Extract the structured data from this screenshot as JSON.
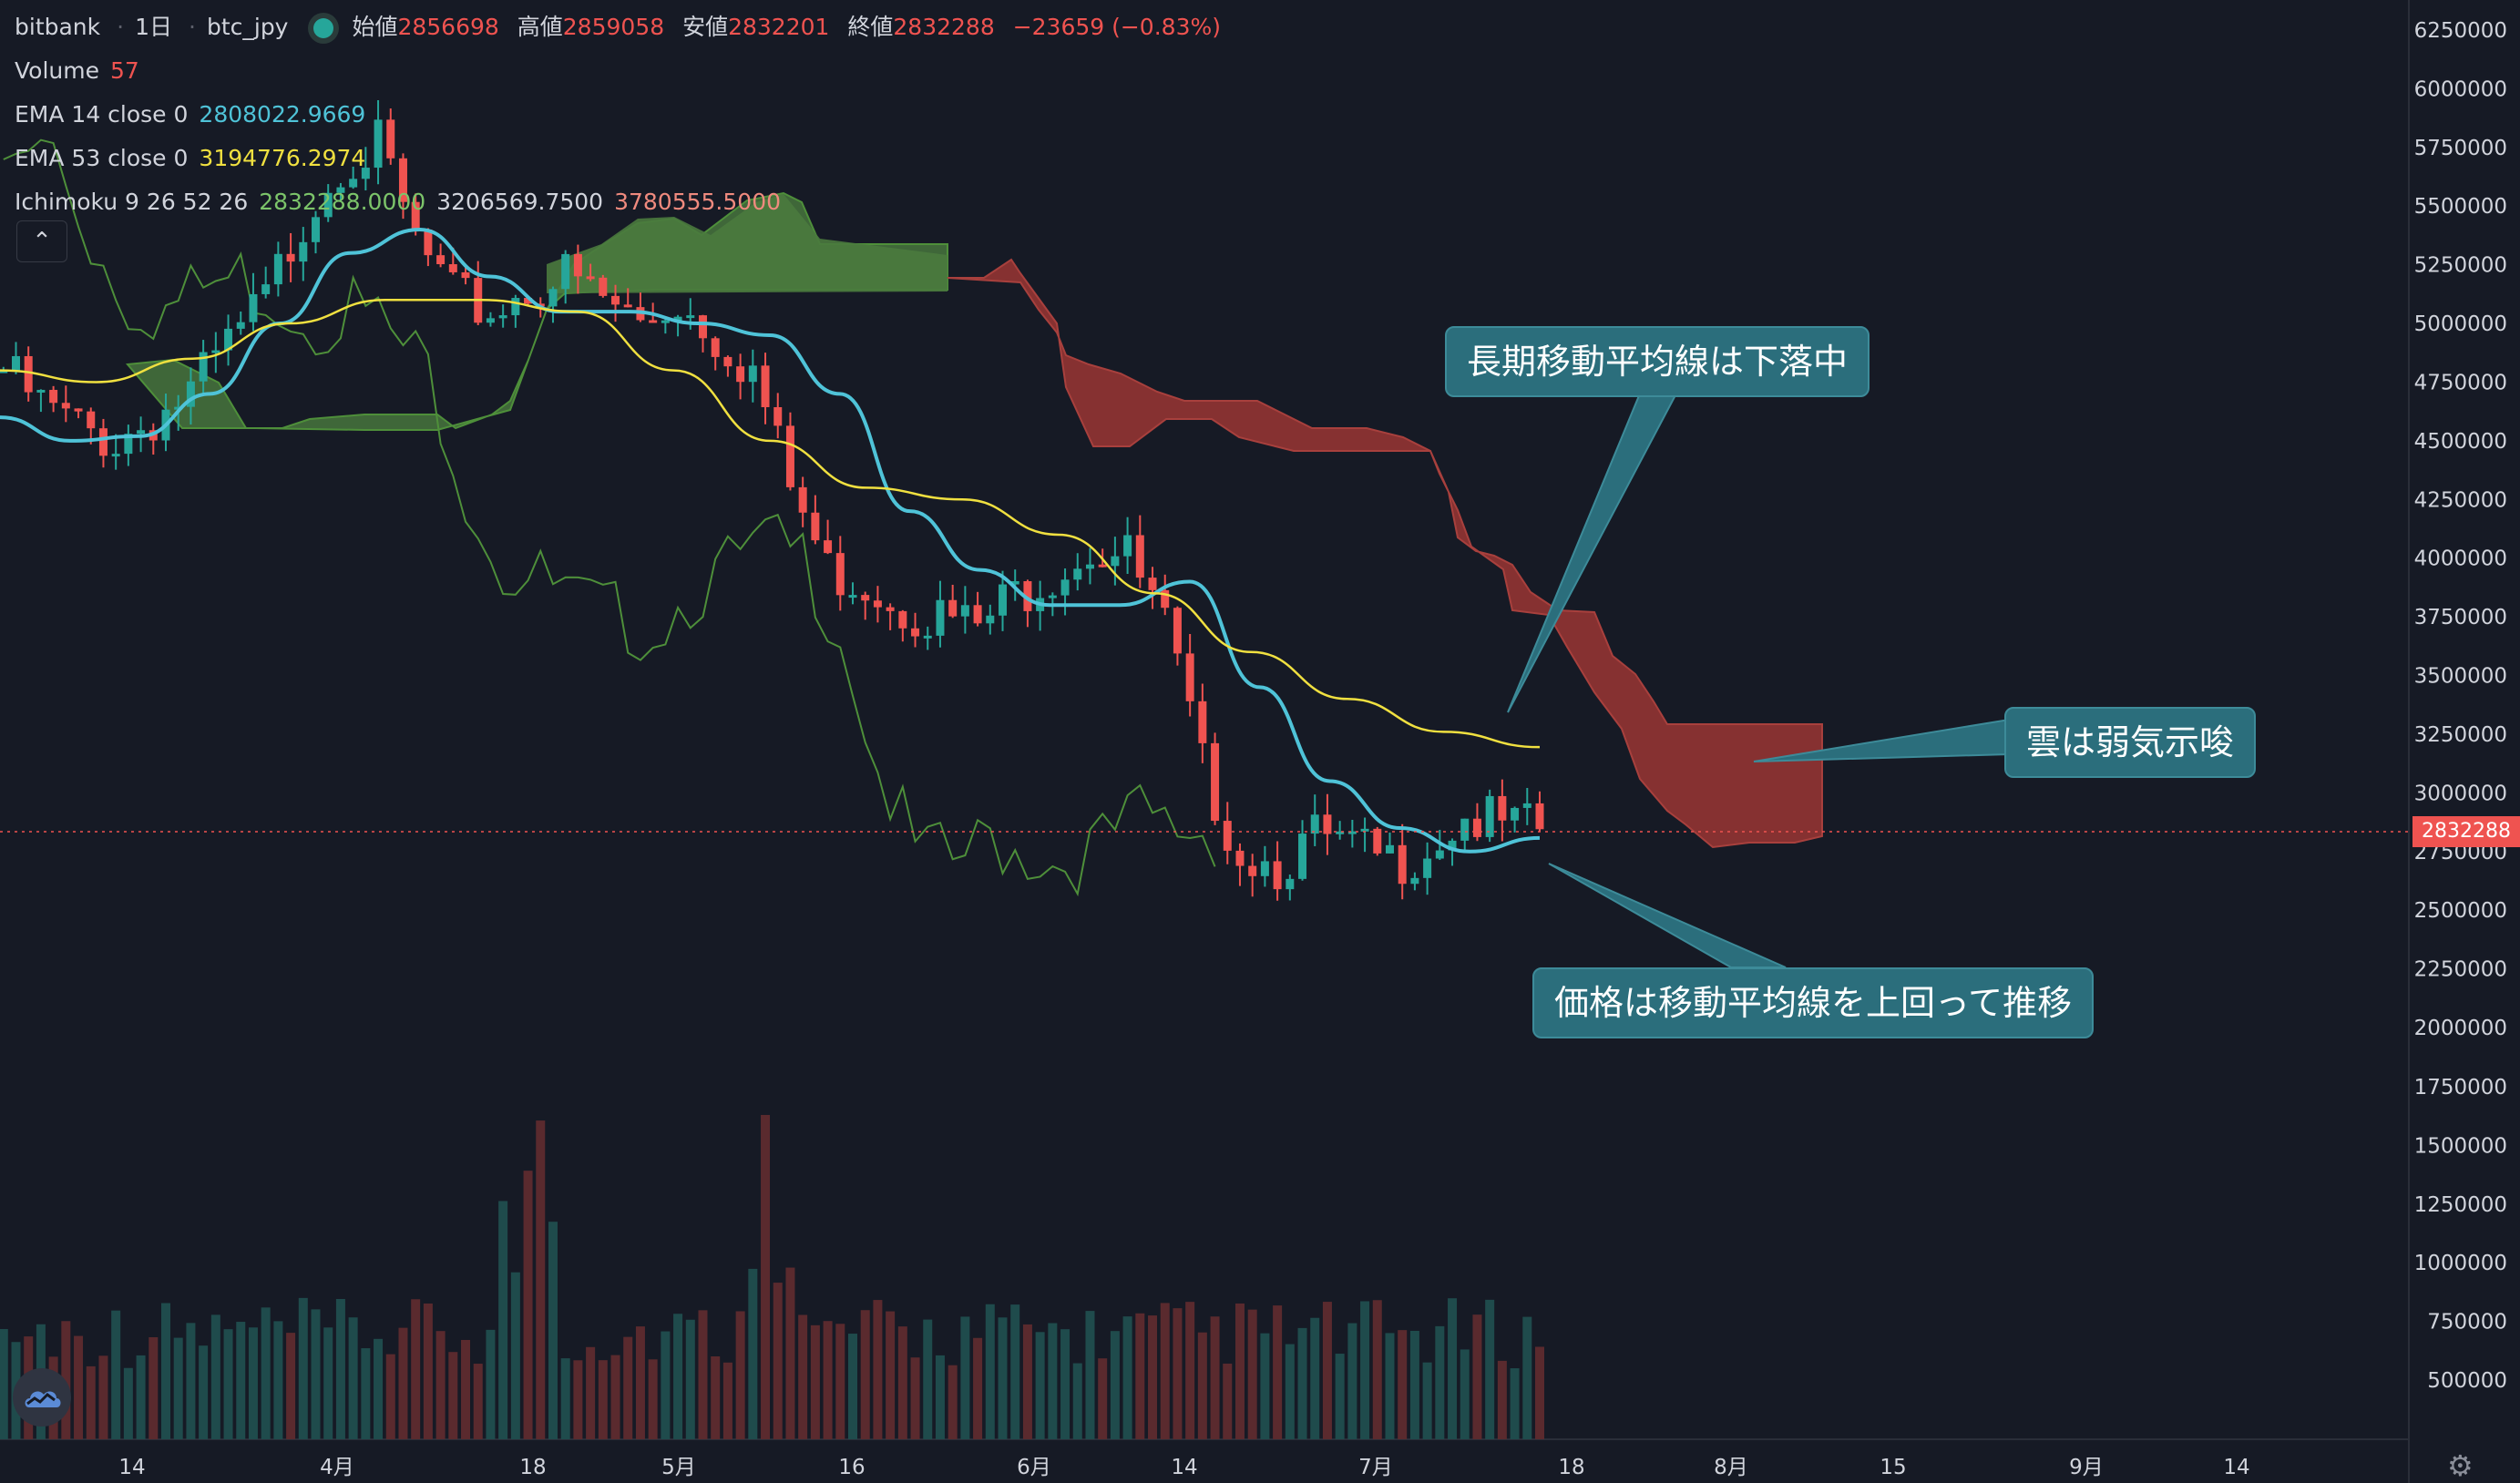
{
  "header": {
    "exchange": "bitbank",
    "interval": "1日",
    "symbol": "btc_jpy",
    "open_label": "始値",
    "open_value": "2856698",
    "high_label": "高値",
    "high_value": "2859058",
    "low_label": "安値",
    "low_value": "2832201",
    "close_label": "終値",
    "close_value": "2832288",
    "change": "−23659 (−0.83%)"
  },
  "indicators": {
    "volume_label": "Volume",
    "volume_value": "57",
    "ema14_label": "EMA 14 close 0",
    "ema14_value": "2808022.9669",
    "ema53_label": "EMA 53 close 0",
    "ema53_value": "3194776.2974",
    "ichimoku_label": "Ichimoku 9 26 52 26",
    "ichimoku_v1": "2832288.0000",
    "ichimoku_v2": "3206569.7500",
    "ichimoku_v3": "3780555.5000"
  },
  "collapse_icon": "chevron-up-icon",
  "price_tag": "2832288",
  "callouts": {
    "long_ma": "長期移動平均線は下落中",
    "cloud": "雲は弱気示唆",
    "price": "価格は移動平均線を上回って推移"
  },
  "colors": {
    "background": "#161a25",
    "up": "#26a69a",
    "down": "#ef5350",
    "ema14": "#4fc3d8",
    "ema53": "#f0e040",
    "lagging_span": "#4e8f3a",
    "cloud_bull": "#4a7a3e",
    "cloud_bear": "#8c3331",
    "callout": "#2b6e7c"
  },
  "chart_data": {
    "type": "candlestick",
    "title": "",
    "interval": "1D",
    "x_tick_labels": [
      "14",
      "4月",
      "18",
      "5月",
      "16",
      "6月",
      "14",
      "7月",
      "18",
      "8月",
      "15",
      "9月",
      "14"
    ],
    "price_axis_ticks": [
      6250000,
      6000000,
      5750000,
      5500000,
      5250000,
      5000000,
      4750000,
      4500000,
      4250000,
      4000000,
      3750000,
      3500000,
      3250000,
      3000000,
      2750000,
      2500000,
      2250000,
      2000000
    ],
    "volume_axis_ticks": [
      1750000,
      1500000,
      1250000,
      1000000,
      750000,
      500000
    ],
    "price_range": [
      1850000,
      6350000
    ],
    "last_price": 2832288,
    "closes_every_3_days": [
      4800000,
      4650000,
      4550000,
      4500000,
      4600000,
      4700000,
      4900000,
      5100000,
      5450000,
      5700000,
      5750000,
      5350000,
      5100000,
      5050000,
      5150000,
      5200000,
      5100000,
      5000000,
      5100000,
      4950000,
      4800000,
      4300000,
      3950000,
      3900000,
      3800000,
      3750000,
      3700000,
      3850000,
      3950000,
      4050000,
      4000000,
      3700000,
      3100000,
      2750000,
      2700000,
      2800000,
      2750000,
      2700000,
      2780000,
      2900000,
      2850000,
      2832288
    ],
    "ema14": [
      4600000,
      4500000,
      4520000,
      4700000,
      5000000,
      5300000,
      5400000,
      5200000,
      5050000,
      5050000,
      5000000,
      4950000,
      4700000,
      4200000,
      3950000,
      3800000,
      3800000,
      3900000,
      3450000,
      3050000,
      2850000,
      2750000,
      2808022
    ],
    "ema53": [
      4800000,
      4750000,
      4850000,
      5000000,
      5100000,
      5100000,
      5050000,
      4800000,
      4500000,
      4300000,
      4250000,
      4100000,
      3850000,
      3600000,
      3400000,
      3260000,
      3194776
    ],
    "volume_approx": [
      [
        0,
        700000
      ],
      [
        0.33,
        1800000
      ],
      [
        0.49,
        1800000
      ],
      [
        0.6,
        750000
      ],
      [
        1,
        500000
      ]
    ]
  }
}
